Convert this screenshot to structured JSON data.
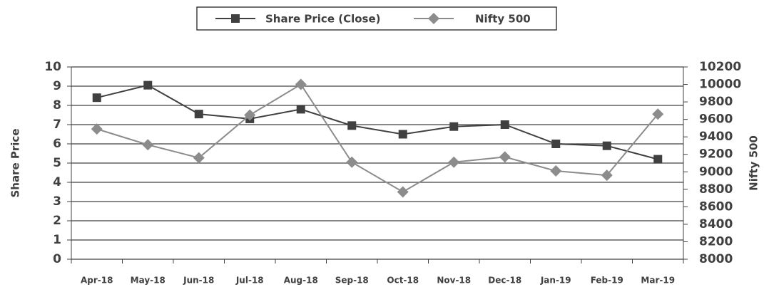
{
  "chart_data": {
    "type": "line",
    "categories": [
      "Apr-18",
      "May-18",
      "Jun-18",
      "Jul-18",
      "Aug-18",
      "Sep-18",
      "Oct-18",
      "Nov-18",
      "Dec-18",
      "Jan-19",
      "Feb-19",
      "Mar-19"
    ],
    "series": [
      {
        "name": "Share Price (Close)",
        "color": "#404040",
        "marker": "square",
        "values": [
          8.4,
          9.05,
          7.55,
          7.3,
          7.8,
          6.95,
          6.5,
          6.9,
          7.0,
          6.0,
          5.9,
          5.2
        ]
      },
      {
        "name": "Nifty 500",
        "color": "#8c8c8c",
        "marker": "diamond",
        "axis": "y2",
        "values": [
          9490,
          9310,
          9160,
          9650,
          10000,
          9110,
          8770,
          9110,
          9170,
          9010,
          8960,
          9660
        ]
      }
    ],
    "ylabel": "Share Price",
    "y2label": "Nifty 500",
    "ylim": [
      0,
      10
    ],
    "yticks": [
      0,
      1,
      2,
      3,
      4,
      5,
      6,
      7,
      8,
      9,
      10
    ],
    "y2lim": [
      8000,
      10200
    ],
    "y2ticks": [
      8000,
      8200,
      8400,
      8600,
      8800,
      9000,
      9200,
      9400,
      9600,
      9800,
      10000,
      10200
    ],
    "grid": true,
    "legend": "top"
  }
}
